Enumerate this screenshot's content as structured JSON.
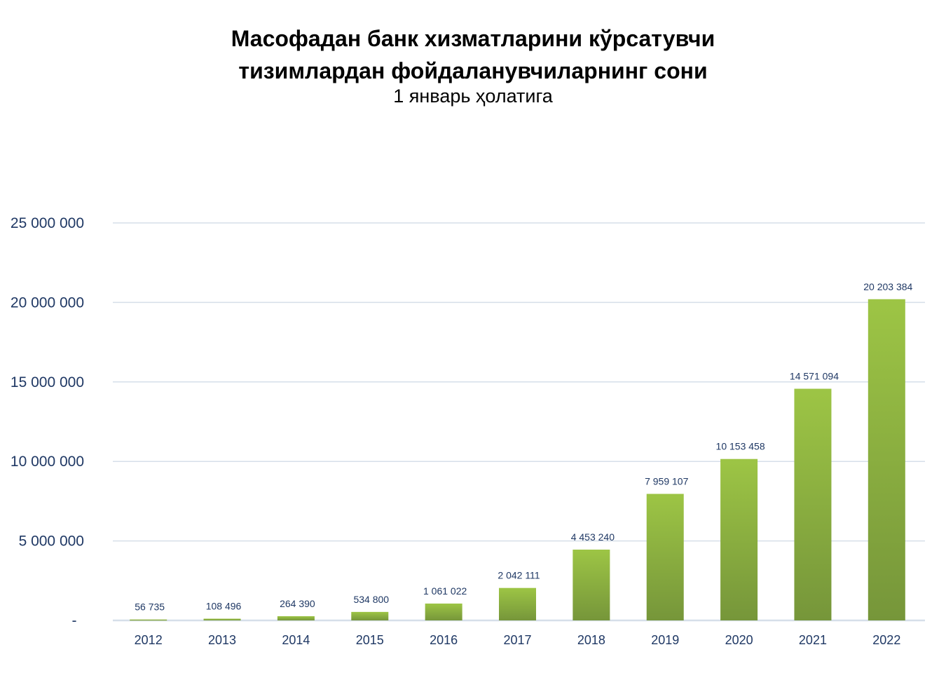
{
  "chart_data": {
    "type": "bar",
    "title": "Масофадан банк хизматларини кўрсатувчи тизимлардан фойдаланувчиларнинг сони",
    "title_line1": "Масофадан банк хизматларини кўрсатувчи",
    "title_line2": "тизимлардан фойдаланувчиларнинг сони",
    "subtitle": "1 январь ҳолатига",
    "xlabel": "",
    "ylabel": "",
    "categories": [
      "2012",
      "2013",
      "2014",
      "2015",
      "2016",
      "2017",
      "2018",
      "2019",
      "2020",
      "2021",
      "2022"
    ],
    "values": [
      56735,
      108496,
      264390,
      534800,
      1061022,
      2042111,
      4453240,
      7959107,
      10153458,
      14571094,
      20203384
    ],
    "data_labels": [
      "56 735",
      "108 496",
      "264 390",
      "534 800",
      "1 061 022",
      "2 042 111",
      "4 453 240",
      "7 959 107",
      "10 153 458",
      "14 571 094",
      "20 203 384"
    ],
    "ylim": [
      0,
      25000000
    ],
    "yticks": [
      0,
      5000000,
      10000000,
      15000000,
      20000000,
      25000000
    ],
    "ytick_labels": [
      "-",
      "5 000 000",
      "10 000 000",
      "15 000 000",
      "20 000 000",
      "25 000 000"
    ],
    "grid": true,
    "legend": "none",
    "colors": {
      "bar_top": "#9dc545",
      "bar_bottom": "#76963a",
      "grid": "#d6dfe9",
      "text": "#1f3864"
    }
  }
}
